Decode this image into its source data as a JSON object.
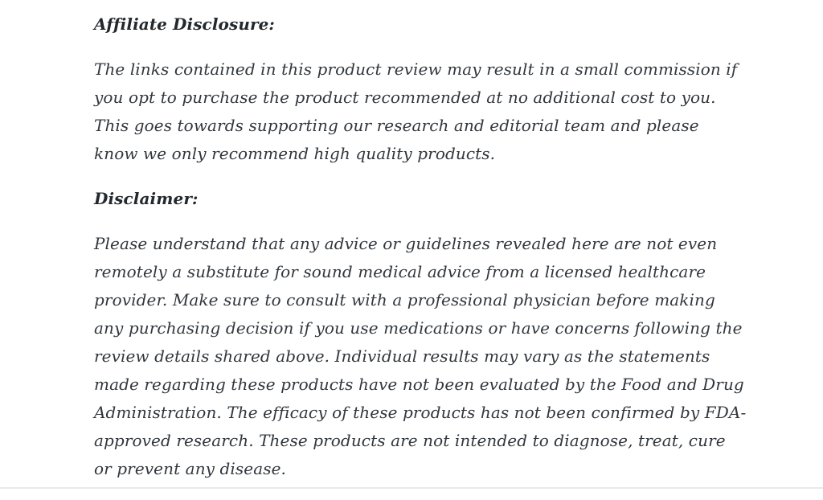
{
  "page": {
    "background_color": "#ffffff",
    "heading_color": "#23282d",
    "body_text_color": "#31373d",
    "divider_color": "#e9e9e9"
  },
  "article": {
    "sections": [
      {
        "heading": "Affiliate Disclosure:",
        "paragraph": "The links contained in this product review may result in a small commission if you opt to purchase the product recommended at no additional cost to you. This goes towards supporting our research and editorial team and please know we only recommend high quality products."
      },
      {
        "heading": "Disclaimer:",
        "paragraph": "Please understand that any advice or guidelines revealed here are not even remotely a substitute for sound medical advice from a licensed healthcare provider. Make sure to consult with a professional physician before making any purchasing decision if you use medications or have concerns following the review details shared above. Individual results may vary as the statements made regarding these products have not been evaluated by the Food and Drug Administration. The efficacy of these products has not been confirmed by FDA-approved research. These products are not intended to diagnose, treat, cure or prevent any disease."
      }
    ]
  }
}
